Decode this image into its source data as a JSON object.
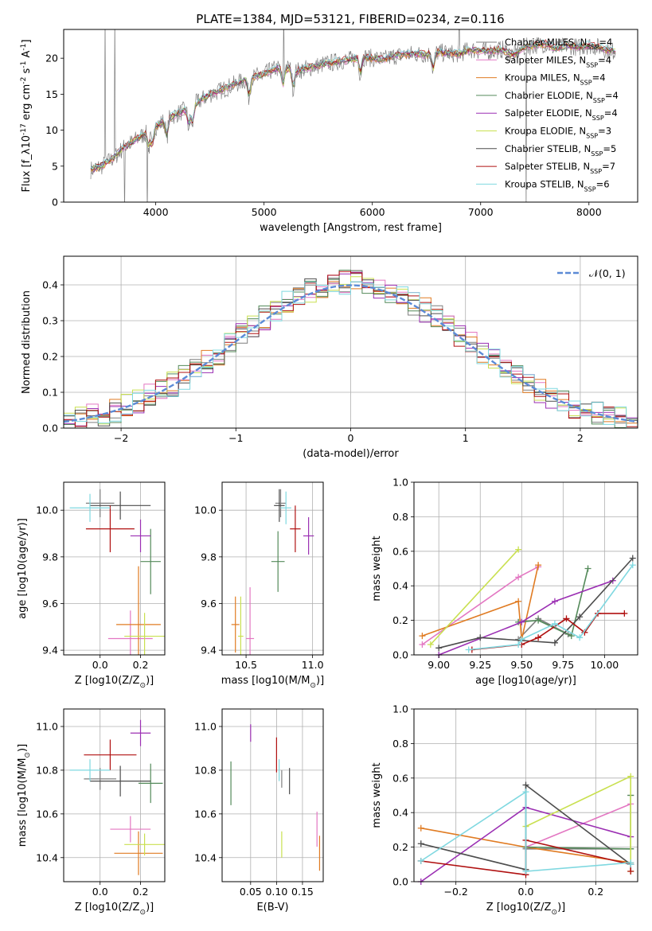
{
  "figure_title": "PLATE=1384, MJD=53121, FIBERID=0234, z=0.116",
  "colors": {
    "Chabrier MILES": "#7f7f7f",
    "Salpeter MILES": "#e377c2",
    "Kroupa MILES": "#e07b22",
    "Chabrier ELODIE": "#548a5a",
    "Salpeter ELODIE": "#9b2fb3",
    "Kroupa ELODIE": "#c9e050",
    "Chabrier STELIB": "#4d4d4d",
    "Salpeter STELIB": "#b01010",
    "Kroupa STELIB": "#7fd8e0",
    "gauss": "#5b8ad6"
  },
  "chart_data": [
    {
      "id": "spectrum",
      "type": "line",
      "xlabel": "wavelength [Angstrom, rest frame]",
      "ylabel": "Flux [f_λ10^-17 erg cm^-2 s^-1 A^-1]",
      "xlim": [
        3150,
        8450
      ],
      "ylim": [
        0,
        24
      ],
      "xticks": [
        4000,
        5000,
        6000,
        7000,
        8000
      ],
      "yticks": [
        0,
        5,
        10,
        15,
        20
      ],
      "grid": false,
      "legend_position": "right",
      "x": [
        3400,
        3500,
        3600,
        3700,
        3800,
        3900,
        4000,
        4100,
        4200,
        4300,
        4400,
        4500,
        4600,
        4700,
        4800,
        4900,
        5000,
        5100,
        5200,
        5300,
        5400,
        5500,
        5600,
        5700,
        5800,
        5900,
        6000,
        6100,
        6200,
        6300,
        6400,
        6500,
        6600,
        6700,
        6800,
        6900,
        7000,
        7100,
        7200,
        7300,
        7400,
        7500,
        7600,
        7700,
        7800,
        7900,
        8000,
        8100,
        8200
      ],
      "y": [
        4.5,
        5.0,
        6.0,
        7.5,
        8.5,
        9.5,
        10.5,
        11.5,
        12.3,
        13.0,
        14.0,
        15.0,
        15.5,
        16.2,
        16.8,
        17.3,
        17.8,
        18.5,
        18.7,
        18.2,
        18.6,
        19.0,
        19.3,
        19.6,
        19.8,
        20.2,
        20.0,
        19.8,
        20.3,
        20.5,
        20.6,
        20.5,
        20.8,
        20.7,
        20.6,
        21.2,
        21.0,
        21.0,
        21.2,
        20.5,
        21.5,
        21.8,
        22.0,
        21.3,
        21.8,
        21.5,
        21.8,
        21.5,
        21.0
      ],
      "series": [
        {
          "name": "Chabrier MILES, N_SSP=4"
        },
        {
          "name": "Salpeter MILES, N_SSP=4"
        },
        {
          "name": "Kroupa MILES, N_SSP=4"
        },
        {
          "name": "Chabrier ELODIE, N_SSP=4"
        },
        {
          "name": "Salpeter ELODIE, N_SSP=4"
        },
        {
          "name": "Kroupa ELODIE, N_SSP=3"
        },
        {
          "name": "Chabrier STELIB, N_SSP=5"
        },
        {
          "name": "Salpeter STELIB, N_SSP=7"
        },
        {
          "name": "Kroupa STELIB, N_SSP=6"
        }
      ]
    },
    {
      "id": "residuals",
      "type": "line",
      "xlabel": "(data-model)/error",
      "ylabel": "Normed distribution",
      "xlim": [
        -2.5,
        2.5
      ],
      "ylim": [
        0,
        0.48
      ],
      "xticks": [
        -2,
        -1,
        0,
        1,
        2
      ],
      "yticks": [
        0.0,
        0.1,
        0.2,
        0.3,
        0.4
      ],
      "grid": true,
      "legend_position": "upper right",
      "legend": [
        "𝒩(0, 1)"
      ],
      "bin_width": 0.1
    },
    {
      "id": "age_vs_Z",
      "type": "scatter",
      "xlabel": "Z [log10(Z/Z_⊙)]",
      "ylabel": "age [log10(age/yr)]",
      "xlim": [
        -0.18,
        0.32
      ],
      "ylim": [
        9.38,
        10.12
      ],
      "xticks": [
        0.0,
        0.2
      ],
      "yticks": [
        9.4,
        9.6,
        9.8,
        10.0
      ],
      "grid": true,
      "points": [
        {
          "model": "Chabrier MILES",
          "x": 0.0,
          "y": 10.03,
          "xerr": 0.07,
          "yerr": 0.06
        },
        {
          "model": "Salpeter MILES",
          "x": 0.15,
          "y": 9.45,
          "xerr": 0.11,
          "yerr": 0.12
        },
        {
          "model": "Kroupa MILES",
          "x": 0.19,
          "y": 9.51,
          "xerr": 0.11,
          "yerr": 0.25
        },
        {
          "model": "Chabrier ELODIE",
          "x": 0.25,
          "y": 9.78,
          "xerr": 0.05,
          "yerr": 0.14
        },
        {
          "model": "Salpeter ELODIE",
          "x": 0.2,
          "y": 9.89,
          "xerr": 0.05,
          "yerr": 0.07
        },
        {
          "model": "Kroupa ELODIE",
          "x": 0.22,
          "y": 9.46,
          "xerr": 0.1,
          "yerr": 0.1
        },
        {
          "model": "Chabrier STELIB",
          "x": 0.1,
          "y": 10.02,
          "xerr": 0.15,
          "yerr": 0.06
        },
        {
          "model": "Salpeter STELIB",
          "x": 0.05,
          "y": 9.92,
          "xerr": 0.12,
          "yerr": 0.1
        },
        {
          "model": "Kroupa STELIB",
          "x": -0.05,
          "y": 10.01,
          "xerr": 0.1,
          "yerr": 0.06
        }
      ]
    },
    {
      "id": "age_vs_mass",
      "type": "scatter",
      "xlabel": "mass [log10(M/M_⊙)]",
      "ylabel": "",
      "xlim": [
        10.32,
        11.08
      ],
      "ylim": [
        9.38,
        10.12
      ],
      "xticks": [
        10.5,
        11.0
      ],
      "yticks": [
        9.4,
        9.6,
        9.8,
        10.0
      ],
      "grid": true,
      "points": [
        {
          "model": "Chabrier MILES",
          "x": 10.76,
          "y": 10.03,
          "xerr": 0.04,
          "yerr": 0.06
        },
        {
          "model": "Salpeter MILES",
          "x": 10.53,
          "y": 9.45,
          "xerr": 0.03,
          "yerr": 0.22
        },
        {
          "model": "Kroupa MILES",
          "x": 10.42,
          "y": 9.51,
          "xerr": 0.03,
          "yerr": 0.12
        },
        {
          "model": "Chabrier ELODIE",
          "x": 10.74,
          "y": 9.78,
          "xerr": 0.05,
          "yerr": 0.13
        },
        {
          "model": "Salpeter ELODIE",
          "x": 10.97,
          "y": 9.89,
          "xerr": 0.04,
          "yerr": 0.08
        },
        {
          "model": "Kroupa ELODIE",
          "x": 10.46,
          "y": 9.46,
          "xerr": 0.02,
          "yerr": 0.17
        },
        {
          "model": "Chabrier STELIB",
          "x": 10.75,
          "y": 10.02,
          "xerr": 0.04,
          "yerr": 0.07
        },
        {
          "model": "Salpeter STELIB",
          "x": 10.87,
          "y": 9.92,
          "xerr": 0.04,
          "yerr": 0.1
        },
        {
          "model": "Kroupa STELIB",
          "x": 10.8,
          "y": 10.01,
          "xerr": 0.04,
          "yerr": 0.07
        }
      ]
    },
    {
      "id": "weight_vs_age",
      "type": "line",
      "xlabel": "age [log10(age/yr)]",
      "ylabel": "mass weight",
      "xlim": [
        8.85,
        10.2
      ],
      "ylim": [
        0,
        1.0
      ],
      "xticks": [
        9.0,
        9.25,
        9.5,
        9.75,
        10.0
      ],
      "yticks": [
        0.0,
        0.2,
        0.4,
        0.6,
        0.8,
        1.0
      ],
      "grid": true,
      "series": [
        {
          "model": "Chabrier MILES",
          "x": [
            9.48,
            9.6,
            9.78
          ],
          "y": [
            0.09,
            0.21,
            0.12
          ]
        },
        {
          "model": "Salpeter MILES",
          "x": [
            8.9,
            9.48,
            9.6
          ],
          "y": [
            0.06,
            0.45,
            0.51
          ]
        },
        {
          "model": "Kroupa MILES",
          "x": [
            8.9,
            9.48,
            9.5,
            9.6
          ],
          "y": [
            0.11,
            0.31,
            0.09,
            0.52
          ]
        },
        {
          "model": "Chabrier ELODIE",
          "x": [
            9.48,
            9.6,
            9.8,
            9.9
          ],
          "y": [
            0.19,
            0.2,
            0.11,
            0.5
          ]
        },
        {
          "model": "Salpeter ELODIE",
          "x": [
            9.0,
            9.5,
            9.7,
            10.05
          ],
          "y": [
            0.0,
            0.19,
            0.31,
            0.43
          ]
        },
        {
          "model": "Kroupa ELODIE",
          "x": [
            8.95,
            9.48
          ],
          "y": [
            0.06,
            0.61
          ]
        },
        {
          "model": "Chabrier STELIB",
          "x": [
            9.0,
            9.25,
            9.7,
            9.85,
            10.17
          ],
          "y": [
            0.04,
            0.1,
            0.07,
            0.22,
            0.56
          ]
        },
        {
          "model": "Salpeter STELIB",
          "x": [
            9.2,
            9.5,
            9.6,
            9.77,
            9.88,
            9.96,
            10.12
          ],
          "y": [
            0.03,
            0.06,
            0.1,
            0.21,
            0.13,
            0.24,
            0.24
          ]
        },
        {
          "model": "Kroupa STELIB",
          "x": [
            9.18,
            9.48,
            9.5,
            9.7,
            9.85,
            10.17
          ],
          "y": [
            0.03,
            0.06,
            0.09,
            0.18,
            0.1,
            0.52
          ]
        }
      ]
    },
    {
      "id": "mass_vs_Z",
      "type": "scatter",
      "xlabel": "Z [log10(Z/Z_⊙)]",
      "ylabel": "mass [log10(M/M_⊙)]",
      "xlim": [
        -0.18,
        0.32
      ],
      "ylim": [
        10.29,
        11.08
      ],
      "xticks": [
        0.0,
        0.2
      ],
      "yticks": [
        10.4,
        10.6,
        10.8,
        11.0
      ],
      "grid": true,
      "points": [
        {
          "model": "Chabrier MILES",
          "x": 0.0,
          "y": 10.76,
          "xerr": 0.08,
          "yerr": 0.05
        },
        {
          "model": "Salpeter MILES",
          "x": 0.15,
          "y": 10.53,
          "xerr": 0.1,
          "yerr": 0.06
        },
        {
          "model": "Kroupa MILES",
          "x": 0.19,
          "y": 10.42,
          "xerr": 0.12,
          "yerr": 0.1
        },
        {
          "model": "Chabrier ELODIE",
          "x": 0.25,
          "y": 10.74,
          "xerr": 0.06,
          "yerr": 0.09
        },
        {
          "model": "Salpeter ELODIE",
          "x": 0.2,
          "y": 10.97,
          "xerr": 0.05,
          "yerr": 0.06
        },
        {
          "model": "Kroupa ELODIE",
          "x": 0.22,
          "y": 10.46,
          "xerr": 0.1,
          "yerr": 0.05
        },
        {
          "model": "Chabrier STELIB",
          "x": 0.1,
          "y": 10.75,
          "xerr": 0.15,
          "yerr": 0.07
        },
        {
          "model": "Salpeter STELIB",
          "x": 0.05,
          "y": 10.87,
          "xerr": 0.13,
          "yerr": 0.07
        },
        {
          "model": "Kroupa STELIB",
          "x": -0.05,
          "y": 10.8,
          "xerr": 0.1,
          "yerr": 0.05
        }
      ]
    },
    {
      "id": "mass_vs_EBV",
      "type": "scatter",
      "xlabel": "E(B-V)",
      "ylabel": "",
      "xlim": [
        -0.005,
        0.19
      ],
      "ylim": [
        10.29,
        11.08
      ],
      "xticks": [
        0.05,
        0.1,
        0.15
      ],
      "yticks": [
        10.4,
        10.6,
        10.8,
        11.0
      ],
      "grid": true,
      "points": [
        {
          "model": "Chabrier MILES",
          "x": 0.11,
          "y": 10.76,
          "xerr": 0.0,
          "yerr": 0.04
        },
        {
          "model": "Salpeter MILES",
          "x": 0.178,
          "y": 10.53,
          "xerr": 0.0,
          "yerr": 0.08
        },
        {
          "model": "Kroupa MILES",
          "x": 0.183,
          "y": 10.42,
          "xerr": 0.0,
          "yerr": 0.08
        },
        {
          "model": "Chabrier ELODIE",
          "x": 0.012,
          "y": 10.74,
          "xerr": 0.0,
          "yerr": 0.1
        },
        {
          "model": "Salpeter ELODIE",
          "x": 0.05,
          "y": 10.97,
          "xerr": 0.0,
          "yerr": 0.04
        },
        {
          "model": "Kroupa ELODIE",
          "x": 0.11,
          "y": 10.46,
          "xerr": 0.0,
          "yerr": 0.06
        },
        {
          "model": "Chabrier STELIB",
          "x": 0.125,
          "y": 10.75,
          "xerr": 0.0,
          "yerr": 0.06
        },
        {
          "model": "Salpeter STELIB",
          "x": 0.1,
          "y": 10.87,
          "xerr": 0.0,
          "yerr": 0.08
        },
        {
          "model": "Kroupa STELIB",
          "x": 0.105,
          "y": 10.8,
          "xerr": 0.0,
          "yerr": 0.05
        }
      ]
    },
    {
      "id": "weight_vs_Z",
      "type": "line",
      "xlabel": "Z [log10(Z/Z_⊙)]",
      "ylabel": "mass weight",
      "xlim": [
        -0.32,
        0.32
      ],
      "ylim": [
        0,
        1.0
      ],
      "xticks": [
        -0.2,
        0.0,
        0.2
      ],
      "yticks": [
        0.0,
        0.2,
        0.4,
        0.6,
        0.8,
        1.0
      ],
      "grid": true,
      "series": [
        {
          "model": "Chabrier MILES",
          "x": [
            0.0,
            0.3,
            0.3
          ],
          "y": [
            0.19,
            0.19,
            0.5
          ]
        },
        {
          "model": "Salpeter MILES",
          "x": [
            0.0,
            0.3
          ],
          "y": [
            0.2,
            0.45
          ]
        },
        {
          "model": "Kroupa MILES",
          "x": [
            -0.3,
            0.0,
            0.3
          ],
          "y": [
            0.31,
            0.2,
            0.11
          ]
        },
        {
          "model": "Chabrier ELODIE",
          "x": [
            0.0,
            0.3,
            0.3
          ],
          "y": [
            0.2,
            0.19,
            0.5
          ]
        },
        {
          "model": "Salpeter ELODIE",
          "x": [
            -0.3,
            0.0,
            0.3
          ],
          "y": [
            0.0,
            0.43,
            0.26
          ]
        },
        {
          "model": "Kroupa ELODIE",
          "x": [
            0.0,
            0.3,
            0.3
          ],
          "y": [
            0.32,
            0.61,
            0.06
          ]
        },
        {
          "model": "Chabrier STELIB",
          "x": [
            -0.3,
            0.0,
            0.0,
            0.3
          ],
          "y": [
            0.22,
            0.07,
            0.56,
            0.1
          ]
        },
        {
          "model": "Salpeter STELIB",
          "x": [
            -0.3,
            0.0,
            0.0,
            0.3,
            0.3
          ],
          "y": [
            0.12,
            0.04,
            0.24,
            0.1,
            0.06
          ]
        },
        {
          "model": "Kroupa STELIB",
          "x": [
            -0.3,
            0.0,
            0.0,
            0.3,
            0.3
          ],
          "y": [
            0.12,
            0.52,
            0.06,
            0.11,
            0.1
          ]
        }
      ]
    }
  ]
}
